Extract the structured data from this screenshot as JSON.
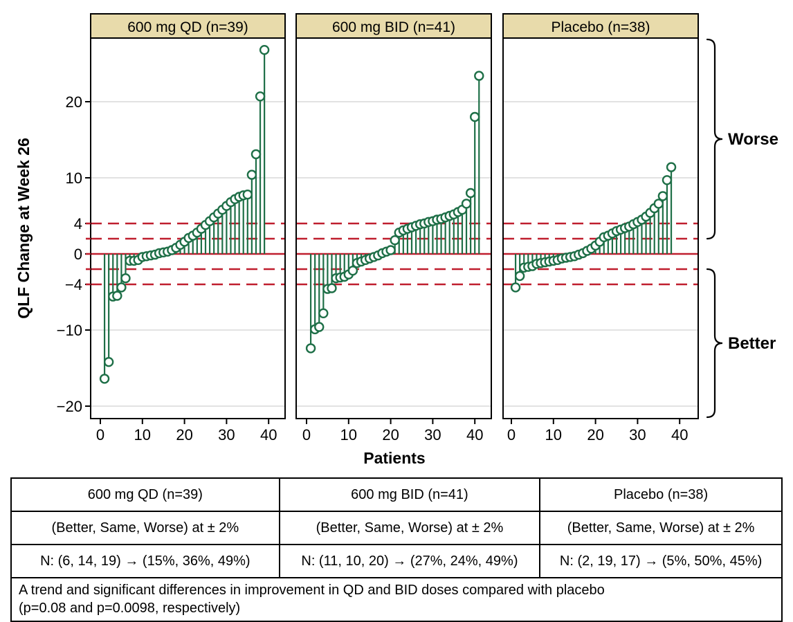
{
  "chart_data": {
    "type": "lollipop",
    "title": "",
    "ylabel": "QLF Change at Week 26",
    "xlabel": "Patients",
    "ylim": [
      -21.6,
      28.2
    ],
    "yticks": [
      {
        "v": 20,
        "label": "20"
      },
      {
        "v": 10,
        "label": "10"
      },
      {
        "v": 4,
        "label": "4"
      },
      {
        "v": 0,
        "label": "0"
      },
      {
        "v": -4,
        "label": "−4"
      },
      {
        "v": -10,
        "label": "−10"
      },
      {
        "v": -20,
        "label": "−20"
      }
    ],
    "xticks": [
      0,
      10,
      20,
      30,
      40
    ],
    "gridlines": [
      20,
      10,
      -10,
      -20
    ],
    "ref_lines": {
      "solid": [
        0
      ],
      "dashed": [
        4,
        2,
        -2,
        -4
      ]
    },
    "annotations": [
      {
        "label": "Worse",
        "side": "above",
        "value": 2
      },
      {
        "label": "Better",
        "side": "below",
        "value": -2
      }
    ],
    "colors": {
      "stem": "#1e6f47",
      "reference": "#bf1e2e",
      "header_fill": "#e8dbab",
      "gridline": "#d9d9d9",
      "border": "#000000"
    },
    "panels": [
      {
        "title": "600 mg QD (n=39)",
        "n": 39,
        "values": [
          -16.4,
          -14.2,
          -5.6,
          -5.5,
          -4.4,
          -3.2,
          -0.9,
          -0.9,
          -0.8,
          -0.4,
          -0.3,
          -0.2,
          -0.1,
          0.1,
          0.2,
          0.3,
          0.5,
          0.8,
          1.2,
          1.6,
          2.1,
          2.4,
          2.8,
          3.3,
          3.8,
          4.3,
          4.8,
          5.3,
          5.8,
          6.3,
          6.8,
          7.2,
          7.5,
          7.7,
          7.8,
          10.4,
          13.1,
          20.7,
          26.8
        ]
      },
      {
        "title": "600 mg BID (n=41)",
        "n": 41,
        "values": [
          -12.4,
          -9.9,
          -9.6,
          -7.8,
          -4.6,
          -4.5,
          -3.2,
          -3.1,
          -3.0,
          -2.7,
          -2.2,
          -1.2,
          -1.0,
          -0.8,
          -0.6,
          -0.4,
          -0.2,
          0.1,
          0.3,
          0.5,
          1.8,
          2.8,
          3.1,
          3.3,
          3.5,
          3.7,
          3.9,
          4.0,
          4.2,
          4.3,
          4.5,
          4.6,
          4.8,
          5.0,
          5.2,
          5.5,
          5.8,
          6.6,
          8.0,
          18.0,
          23.4
        ]
      },
      {
        "title": "Placebo (n=38)",
        "n": 38,
        "values": [
          -4.4,
          -2.9,
          -1.8,
          -1.7,
          -1.6,
          -1.3,
          -1.2,
          -1.1,
          -1.0,
          -0.9,
          -0.8,
          -0.6,
          -0.5,
          -0.4,
          -0.3,
          -0.1,
          0.1,
          0.4,
          0.7,
          1.1,
          1.6,
          2.2,
          2.4,
          2.7,
          3.0,
          3.2,
          3.4,
          3.6,
          3.9,
          4.2,
          4.5,
          4.9,
          5.4,
          6.0,
          6.6,
          7.6,
          9.7,
          11.4
        ]
      }
    ]
  },
  "table": {
    "columns": [
      {
        "header": "600 mg QD (n=39)",
        "criteria": "(Better, Same, Worse) at ± 2%",
        "result": "N: (6, 14, 19) → (15%, 36%, 49%)"
      },
      {
        "header": "600 mg BID (n=41)",
        "criteria": "(Better, Same, Worse) at ± 2%",
        "result": "N: (11, 10, 20) → (27%, 24%, 49%)"
      },
      {
        "header": "Placebo (n=38)",
        "criteria": "(Better, Same, Worse) at ± 2%",
        "result": "N: (2, 19, 17) → (5%, 50%, 45%)"
      }
    ],
    "footnote_line1": "A trend and significant differences in improvement in QD and BID doses compared with placebo",
    "footnote_line2": "(p=0.08 and p=0.0098, respectively)"
  }
}
